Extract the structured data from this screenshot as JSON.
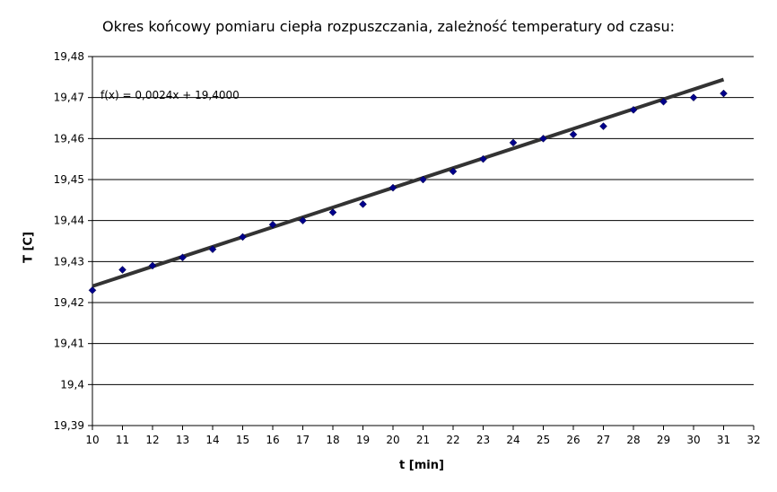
{
  "chart_data": {
    "type": "scatter",
    "title": "Okres końcowy pomiaru ciepła rozpuszczania, zależność temperatury od czasu:",
    "xlabel": "t [min]",
    "ylabel": "T [C]",
    "xlim": [
      10,
      32
    ],
    "ylim": [
      19.39,
      19.48
    ],
    "x_ticks": [
      "10",
      "11",
      "12",
      "13",
      "14",
      "15",
      "16",
      "17",
      "18",
      "19",
      "20",
      "21",
      "22",
      "23",
      "24",
      "25",
      "26",
      "27",
      "28",
      "29",
      "30",
      "31",
      "32"
    ],
    "y_ticks": [
      "19,39",
      "19,4",
      "19,41",
      "19,42",
      "19,43",
      "19,44",
      "19,45",
      "19,46",
      "19,47",
      "19,48"
    ],
    "grid": "horizontal",
    "series": [
      {
        "x": [
          10,
          11,
          12,
          13,
          14,
          15,
          16,
          17,
          18,
          19,
          20,
          21,
          22,
          23,
          24,
          25,
          26,
          27,
          28,
          29,
          30,
          31
        ],
        "y": [
          19.423,
          19.428,
          19.429,
          19.431,
          19.433,
          19.436,
          19.439,
          19.44,
          19.442,
          19.444,
          19.448,
          19.45,
          19.452,
          19.455,
          19.459,
          19.46,
          19.461,
          19.463,
          19.467,
          19.469,
          19.47,
          19.471
        ],
        "color": "#00008b"
      }
    ],
    "trendline": {
      "slope": 0.0024,
      "intercept": 19.4,
      "x_range": [
        10,
        31
      ],
      "color": "#333333",
      "equation": "f(x) = 0,0024x + 19,4000"
    }
  }
}
